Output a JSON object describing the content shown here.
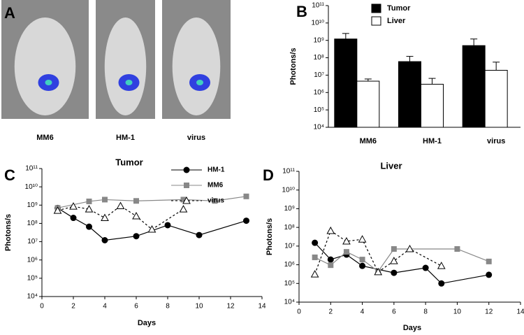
{
  "chart_data": [
    {
      "type": "image",
      "label": "A",
      "categories": [
        "MM6",
        "HM-1",
        "virus"
      ]
    },
    {
      "type": "bar",
      "label": "B",
      "log": true,
      "ylabel": "Photons/s",
      "categories": [
        "MM6",
        "HM-1",
        "virus"
      ],
      "series": [
        {
          "name": "Tumor",
          "color": "#000000",
          "values": [
            1200000000,
            60000000,
            500000000
          ],
          "errors": [
            1300000000,
            60000000,
            700000000
          ]
        },
        {
          "name": "Liver",
          "color": "#ffffff",
          "values": [
            4500000,
            3000000,
            19000000
          ],
          "errors": [
            1500000,
            3500000,
            37000000
          ]
        }
      ],
      "ylim": [
        10000,
        100000000000
      ],
      "yticks": [
        {
          "value": 10000,
          "label": "10⁴"
        },
        {
          "value": 100000,
          "label": "10⁵"
        },
        {
          "value": 1000000,
          "label": "10⁶"
        },
        {
          "value": 10000000,
          "label": "10⁷"
        },
        {
          "value": 100000000,
          "label": "10⁸"
        },
        {
          "value": 1000000000,
          "label": "10⁹"
        },
        {
          "value": 10000000000,
          "label": "10¹⁰"
        },
        {
          "value": 100000000000,
          "label": "10¹¹"
        }
      ]
    },
    {
      "type": "line",
      "label": "C",
      "title": "Tumor",
      "log": true,
      "ylabel": "Photons/s",
      "xlabel": "Days",
      "series": [
        {
          "name": "HM-1",
          "color": "#000000",
          "marker": "circle",
          "x": [
            1,
            2,
            3,
            4,
            6,
            8,
            10,
            13
          ],
          "values": [
            700000000,
            200000000,
            66000000,
            12000000,
            20000000,
            80000000,
            23000000,
            140000000
          ]
        },
        {
          "name": "MM6",
          "color": "#888888",
          "marker": "square",
          "x": [
            1,
            3,
            4,
            6,
            9,
            11,
            13
          ],
          "values": [
            700000000,
            1600000000,
            2000000000,
            1700000000,
            2000000000,
            1700000000,
            3000000000
          ]
        },
        {
          "name": "virus",
          "color": "#000000",
          "marker": "triangle",
          "dashed": true,
          "x": [
            1,
            2,
            3,
            4,
            5,
            6,
            7,
            9
          ],
          "values": [
            500000000,
            850000000,
            600000000,
            200000000,
            900000000,
            250000000,
            47000000,
            600000000
          ]
        }
      ],
      "xlim": [
        0,
        14
      ],
      "xticks": [
        0,
        2,
        4,
        6,
        8,
        10,
        12,
        14
      ],
      "ylim": [
        10000,
        100000000000
      ],
      "yticks": [
        {
          "value": 10000,
          "label": "10⁴"
        },
        {
          "value": 100000,
          "label": "10⁵"
        },
        {
          "value": 1000000,
          "label": "10⁶"
        },
        {
          "value": 10000000,
          "label": "10⁷"
        },
        {
          "value": 100000000,
          "label": "10⁸"
        },
        {
          "value": 1000000000,
          "label": "10⁹"
        },
        {
          "value": 10000000000,
          "label": "10¹⁰"
        },
        {
          "value": 100000000000,
          "label": "10¹¹"
        }
      ]
    },
    {
      "type": "line",
      "label": "D",
      "title": "Liver",
      "log": true,
      "ylabel": "Photons/s",
      "xlabel": "Days",
      "series": [
        {
          "color": "#000000",
          "marker": "circle",
          "x": [
            1,
            2,
            3,
            4,
            6,
            8,
            9,
            12
          ],
          "values": [
            15000000,
            1900000,
            3500000,
            870000,
            370000,
            680000,
            100000,
            290000
          ]
        },
        {
          "color": "#888888",
          "marker": "square",
          "x": [
            1,
            2,
            3,
            4,
            5,
            6,
            10,
            12
          ],
          "values": [
            2500000,
            950000,
            4900000,
            1900000,
            440000,
            7000000,
            7000000,
            1500000
          ]
        },
        {
          "color": "#000000",
          "marker": "triangle",
          "dashed": true,
          "x": [
            1,
            2,
            3,
            4,
            5,
            6,
            7,
            9
          ],
          "values": [
            310000,
            66000000,
            18000000,
            23000000,
            410000,
            1600000,
            7000000,
            870000
          ]
        }
      ],
      "xlim": [
        0,
        14
      ],
      "xticks": [
        0,
        2,
        4,
        6,
        8,
        10,
        12,
        14
      ],
      "ylim": [
        10000,
        100000000000
      ],
      "yticks": [
        {
          "value": 10000,
          "label": "10⁴"
        },
        {
          "value": 100000,
          "label": "10⁵"
        },
        {
          "value": 1000000,
          "label": "10⁶"
        },
        {
          "value": 10000000,
          "label": "10⁷"
        },
        {
          "value": 100000000,
          "label": "10⁸"
        },
        {
          "value": 1000000000,
          "label": "10⁹"
        },
        {
          "value": 10000000000,
          "label": "10¹⁰"
        },
        {
          "value": 100000000000,
          "label": "10¹¹"
        }
      ]
    }
  ]
}
